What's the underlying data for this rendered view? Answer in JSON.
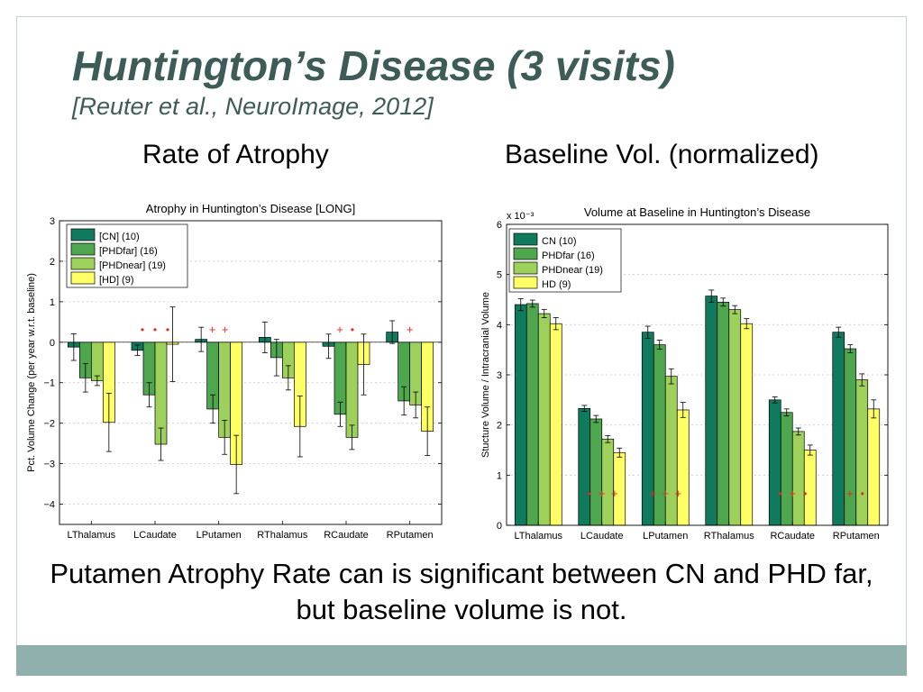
{
  "slide": {
    "title": "Huntington’s Disease (3 visits)",
    "subtitle": "[Reuter et al., NeuroImage, 2012]",
    "left_heading": "Rate of Atrophy",
    "right_heading": "Baseline Vol. (normalized)",
    "conclusion": "Putamen Atrophy Rate can is significant between CN and PHD far, but baseline volume is not."
  },
  "colors": {
    "CN": "#0f7a5e",
    "PHDfar": "#4ea64e",
    "PHDnear": "#9ed15c",
    "HD": "#ffff66",
    "title_text": "#3d5c58",
    "bottom_band": "#8fb0ad",
    "significance_marker": "#e8281e"
  },
  "chart_data": [
    {
      "type": "bar",
      "title": "Atrophy in Huntington’s Disease [LONG]",
      "xlabel": "",
      "ylabel": "Pct. Volume Change (per year w.r.t. baseline)",
      "ylim": [
        -4.5,
        3
      ],
      "yticks": [
        3,
        2,
        1,
        0,
        -1,
        -2,
        -3,
        -4
      ],
      "grid": true,
      "legend_position": "top-left",
      "categories": [
        "LThalamus",
        "LCaudate",
        "LPutamen",
        "RThalamus",
        "RCaudate",
        "RPutamen"
      ],
      "series": [
        {
          "name": "[CN] (10)",
          "values": [
            -0.12,
            -0.2,
            0.07,
            0.12,
            -0.1,
            0.25
          ],
          "errors": [
            0.33,
            0.13,
            0.3,
            0.38,
            0.3,
            0.28
          ]
        },
        {
          "name": "[PHDfar] (16)",
          "values": [
            -0.88,
            -1.3,
            -1.65,
            -0.38,
            -1.78,
            -1.45
          ],
          "errors": [
            0.35,
            0.3,
            0.35,
            0.45,
            0.3,
            0.35
          ]
        },
        {
          "name": "[PHDnear] (19)",
          "values": [
            -0.95,
            -2.52,
            -2.35,
            -0.88,
            -2.35,
            -1.55
          ],
          "errors": [
            0.12,
            0.4,
            0.42,
            0.3,
            0.3,
            0.32
          ]
        },
        {
          "name": "[HD] (9)",
          "values": [
            -1.98,
            -0.05,
            -3.02,
            -2.08,
            -0.55,
            -2.2
          ],
          "errors": [
            0.72,
            0.92,
            0.72,
            0.75,
            0.75,
            0.6
          ]
        }
      ],
      "markers": [
        {
          "category": "LCaudate",
          "symbols": [
            "•",
            "•",
            "•"
          ]
        },
        {
          "category": "LPutamen",
          "symbols": [
            "+",
            "+"
          ]
        },
        {
          "category": "RCaudate",
          "symbols": [
            "+",
            "•"
          ]
        },
        {
          "category": "RPutamen",
          "symbols": [
            "+"
          ]
        }
      ]
    },
    {
      "type": "bar",
      "title": "Volume at Baseline in Huntington’s Disease",
      "xlabel": "",
      "ylabel": "Stucture Volume / Intracranial Volume",
      "scale_label": "x 10⁻³",
      "ylim": [
        0,
        6
      ],
      "yticks": [
        0,
        1,
        2,
        3,
        4,
        5,
        6
      ],
      "grid": true,
      "legend_position": "top-left",
      "categories": [
        "LThalamus",
        "LCaudate",
        "LPutamen",
        "RThalamus",
        "RCaudate",
        "RPutamen"
      ],
      "series": [
        {
          "name": "CN (10)",
          "values": [
            4.4,
            2.33,
            3.85,
            4.57,
            2.5,
            3.85
          ],
          "errors": [
            0.12,
            0.06,
            0.12,
            0.12,
            0.06,
            0.1
          ]
        },
        {
          "name": "PHDfar (16)",
          "values": [
            4.42,
            2.12,
            3.6,
            4.45,
            2.25,
            3.52
          ],
          "errors": [
            0.07,
            0.07,
            0.09,
            0.08,
            0.07,
            0.08
          ]
        },
        {
          "name": "PHDnear (19)",
          "values": [
            4.22,
            1.72,
            2.97,
            4.3,
            1.87,
            2.9
          ],
          "errors": [
            0.08,
            0.07,
            0.15,
            0.08,
            0.07,
            0.12
          ]
        },
        {
          "name": "HD (9)",
          "values": [
            4.02,
            1.45,
            2.3,
            4.02,
            1.5,
            2.32
          ],
          "errors": [
            0.12,
            0.09,
            0.15,
            0.1,
            0.1,
            0.18
          ]
        }
      ],
      "markers": [
        {
          "category": "LCaudate",
          "symbols": [
            "•",
            "+",
            "+"
          ]
        },
        {
          "category": "LPutamen",
          "symbols": [
            "+",
            "+",
            "+"
          ]
        },
        {
          "category": "RCaudate",
          "symbols": [
            "•",
            "+",
            "•"
          ]
        },
        {
          "category": "RPutamen",
          "symbols": [
            "+",
            "•"
          ]
        }
      ]
    }
  ]
}
